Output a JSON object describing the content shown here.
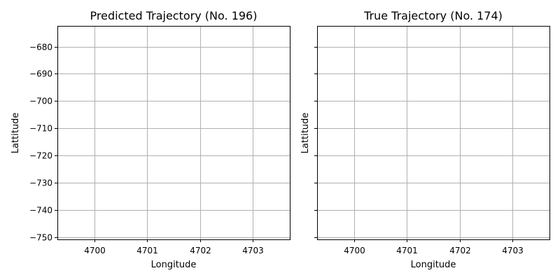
{
  "chart_data": [
    {
      "type": "line",
      "title": "Predicted Trajectory (No. 196)",
      "xlabel": "Longitude",
      "ylabel": "Lattitude",
      "xlim": [
        4699.3,
        4703.7
      ],
      "ylim": [
        -750.8,
        -672.4
      ],
      "xticks": [
        4700,
        4701,
        4702,
        4703
      ],
      "xtick_labels": [
        "4700",
        "4701",
        "4702",
        "4703"
      ],
      "yticks": [
        -680,
        -690,
        -700,
        -710,
        -720,
        -730,
        -740,
        -750
      ],
      "ytick_labels": [
        "−680",
        "−690",
        "−700",
        "−710",
        "−720",
        "−730",
        "−740",
        "−750"
      ],
      "show_ytick_labels": true,
      "grid": true,
      "series": []
    },
    {
      "type": "line",
      "title": "True Trajectory (No. 174)",
      "xlabel": "Longitude",
      "ylabel": "Lattitude",
      "xlim": [
        4699.3,
        4703.7
      ],
      "ylim": [
        -750.8,
        -672.4
      ],
      "xticks": [
        4700,
        4701,
        4702,
        4703
      ],
      "xtick_labels": [
        "4700",
        "4701",
        "4702",
        "4703"
      ],
      "yticks": [
        -680,
        -690,
        -700,
        -710,
        -720,
        -730,
        -740,
        -750
      ],
      "ytick_labels": [],
      "show_ytick_labels": false,
      "grid": true,
      "series": []
    }
  ],
  "colors": {
    "grid": "#b0b0b0",
    "axes": "#000000",
    "background": "#ffffff"
  }
}
